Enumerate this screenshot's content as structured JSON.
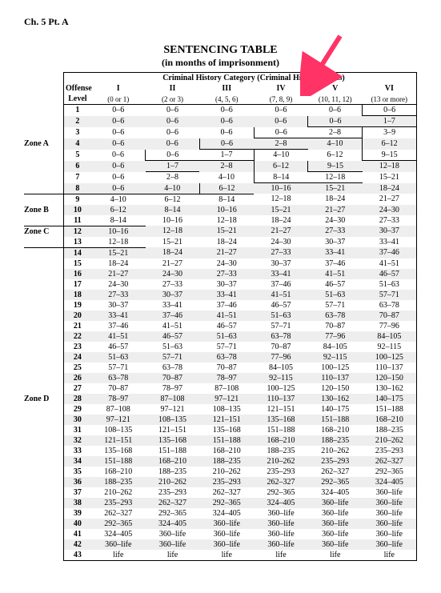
{
  "chapter": "Ch. 5 Pt. A",
  "title": "SENTENCING TABLE",
  "subtitle": "(in months of imprisonment)",
  "header": {
    "zone_label": "",
    "offense_label_1": "Offense",
    "offense_label_2": "Level",
    "super_header": "Criminal History Category  (Criminal History Points)",
    "categories": [
      "I",
      "II",
      "III",
      "IV",
      "V",
      "VI"
    ],
    "points": [
      "(0 or 1)",
      "(2 or 3)",
      "(4, 5, 6)",
      "(7, 8, 9)",
      "(10, 11, 12)",
      "(13 or more)"
    ]
  },
  "zones": {
    "A": {
      "label": "Zone A",
      "row": 4
    },
    "B": {
      "label": "Zone B",
      "row": 10
    },
    "C": {
      "label": "Zone C",
      "row": 12
    },
    "D": {
      "label": "Zone D",
      "row": 28
    }
  },
  "rows": [
    {
      "lvl": "1",
      "c": [
        "0–6",
        "0–6",
        "0–6",
        "0–6",
        "0–6",
        "0–6"
      ]
    },
    {
      "lvl": "2",
      "c": [
        "0–6",
        "0–6",
        "0–6",
        "0–6",
        "0–6",
        "1–7"
      ]
    },
    {
      "lvl": "3",
      "c": [
        "0–6",
        "0–6",
        "0–6",
        "0–6",
        "2–8",
        "3–9"
      ]
    },
    {
      "lvl": "4",
      "c": [
        "0–6",
        "0–6",
        "0–6",
        "2–8",
        "4–10",
        "6–12"
      ]
    },
    {
      "lvl": "5",
      "c": [
        "0–6",
        "0–6",
        "1–7",
        "4–10",
        "6–12",
        "9–15"
      ]
    },
    {
      "lvl": "6",
      "c": [
        "0–6",
        "1–7",
        "2–8",
        "6–12",
        "9–15",
        "12–18"
      ]
    },
    {
      "lvl": "7",
      "c": [
        "0–6",
        "2–8",
        "4–10",
        "8–14",
        "12–18",
        "15–21"
      ]
    },
    {
      "lvl": "8",
      "c": [
        "0–6",
        "4–10",
        "6–12",
        "10–16",
        "15–21",
        "18–24"
      ]
    },
    {
      "lvl": "9",
      "c": [
        "4–10",
        "6–12",
        "8–14",
        "12–18",
        "18–24",
        "21–27"
      ]
    },
    {
      "lvl": "10",
      "c": [
        "6–12",
        "8–14",
        "10–16",
        "15–21",
        "21–27",
        "24–30"
      ]
    },
    {
      "lvl": "11",
      "c": [
        "8–14",
        "10–16",
        "12–18",
        "18–24",
        "24–30",
        "27–33"
      ]
    },
    {
      "lvl": "12",
      "c": [
        "10–16",
        "12–18",
        "15–21",
        "21–27",
        "27–33",
        "30–37"
      ]
    },
    {
      "lvl": "13",
      "c": [
        "12–18",
        "15–21",
        "18–24",
        "24–30",
        "30–37",
        "33–41"
      ]
    },
    {
      "lvl": "14",
      "c": [
        "15–21",
        "18–24",
        "21–27",
        "27–33",
        "33–41",
        "37–46"
      ]
    },
    {
      "lvl": "15",
      "c": [
        "18–24",
        "21–27",
        "24–30",
        "30–37",
        "37–46",
        "41–51"
      ]
    },
    {
      "lvl": "16",
      "c": [
        "21–27",
        "24–30",
        "27–33",
        "33–41",
        "41–51",
        "46–57"
      ]
    },
    {
      "lvl": "17",
      "c": [
        "24–30",
        "27–33",
        "30–37",
        "37–46",
        "46–57",
        "51–63"
      ]
    },
    {
      "lvl": "18",
      "c": [
        "27–33",
        "30–37",
        "33–41",
        "41–51",
        "51–63",
        "57–71"
      ]
    },
    {
      "lvl": "19",
      "c": [
        "30–37",
        "33–41",
        "37–46",
        "46–57",
        "57–71",
        "63–78"
      ]
    },
    {
      "lvl": "20",
      "c": [
        "33–41",
        "37–46",
        "41–51",
        "51–63",
        "63–78",
        "70–87"
      ]
    },
    {
      "lvl": "21",
      "c": [
        "37–46",
        "41–51",
        "46–57",
        "57–71",
        "70–87",
        "77–96"
      ]
    },
    {
      "lvl": "22",
      "c": [
        "41–51",
        "46–57",
        "51–63",
        "63–78",
        "77–96",
        "84–105"
      ]
    },
    {
      "lvl": "23",
      "c": [
        "46–57",
        "51–63",
        "57–71",
        "70–87",
        "84–105",
        "92–115"
      ]
    },
    {
      "lvl": "24",
      "c": [
        "51–63",
        "57–71",
        "63–78",
        "77–96",
        "92–115",
        "100–125"
      ]
    },
    {
      "lvl": "25",
      "c": [
        "57–71",
        "63–78",
        "70–87",
        "84–105",
        "100–125",
        "110–137"
      ]
    },
    {
      "lvl": "26",
      "c": [
        "63–78",
        "70–87",
        "78–97",
        "92–115",
        "110–137",
        "120–150"
      ]
    },
    {
      "lvl": "27",
      "c": [
        "70–87",
        "78–97",
        "87–108",
        "100–125",
        "120–150",
        "130–162"
      ]
    },
    {
      "lvl": "28",
      "c": [
        "78–97",
        "87–108",
        "97–121",
        "110–137",
        "130–162",
        "140–175"
      ]
    },
    {
      "lvl": "29",
      "c": [
        "87–108",
        "97–121",
        "108–135",
        "121–151",
        "140–175",
        "151–188"
      ]
    },
    {
      "lvl": "30",
      "c": [
        "97–121",
        "108–135",
        "121–151",
        "135–168",
        "151–188",
        "168–210"
      ]
    },
    {
      "lvl": "31",
      "c": [
        "108–135",
        "121–151",
        "135–168",
        "151–188",
        "168–210",
        "188–235"
      ]
    },
    {
      "lvl": "32",
      "c": [
        "121–151",
        "135–168",
        "151–188",
        "168–210",
        "188–235",
        "210–262"
      ]
    },
    {
      "lvl": "33",
      "c": [
        "135–168",
        "151–188",
        "168–210",
        "188–235",
        "210–262",
        "235–293"
      ]
    },
    {
      "lvl": "34",
      "c": [
        "151–188",
        "168–210",
        "188–235",
        "210–262",
        "235–293",
        "262–327"
      ]
    },
    {
      "lvl": "35",
      "c": [
        "168–210",
        "188–235",
        "210–262",
        "235–293",
        "262–327",
        "292–365"
      ]
    },
    {
      "lvl": "36",
      "c": [
        "188–235",
        "210–262",
        "235–293",
        "262–327",
        "292–365",
        "324–405"
      ]
    },
    {
      "lvl": "37",
      "c": [
        "210–262",
        "235–293",
        "262–327",
        "292–365",
        "324–405",
        "360–life"
      ]
    },
    {
      "lvl": "38",
      "c": [
        "235–293",
        "262–327",
        "292–365",
        "324–405",
        "360–life",
        "360–life"
      ]
    },
    {
      "lvl": "39",
      "c": [
        "262–327",
        "292–365",
        "324–405",
        "360–life",
        "360–life",
        "360–life"
      ]
    },
    {
      "lvl": "40",
      "c": [
        "292–365",
        "324–405",
        "360–life",
        "360–life",
        "360–life",
        "360–life"
      ]
    },
    {
      "lvl": "41",
      "c": [
        "324–405",
        "360–life",
        "360–life",
        "360–life",
        "360–life",
        "360–life"
      ]
    },
    {
      "lvl": "42",
      "c": [
        "360–life",
        "360–life",
        "360–life",
        "360–life",
        "360–life",
        "360–life"
      ]
    },
    {
      "lvl": "43",
      "c": [
        "life",
        "life",
        "life",
        "life",
        "life",
        "life"
      ]
    }
  ],
  "arrow_color": "#ff3366",
  "steps": {
    "1": {
      "5": "step-bl"
    },
    "2": {
      "4": "step-bl",
      "5": "step-b"
    },
    "3": {
      "3": "step-bl",
      "4": "step-b",
      "5": "step-l"
    },
    "4": {
      "2": "step-bl",
      "3": "step-b",
      "5": "step-l"
    },
    "5": {
      "1": "step-bl",
      "2": "step-b",
      "3": "step-l",
      "5": "step-bl"
    },
    "6": {
      "1": "step-b",
      "3": "step-l",
      "4": "step-bl"
    },
    "7": {
      "3": "step-bl",
      "4": "step-b"
    },
    "8": {
      "0": "step-b",
      "1": "step-b",
      "2": "step-bl"
    },
    "11": {
      "0": "step-b"
    },
    "13": {
      "0": "step-b"
    }
  }
}
